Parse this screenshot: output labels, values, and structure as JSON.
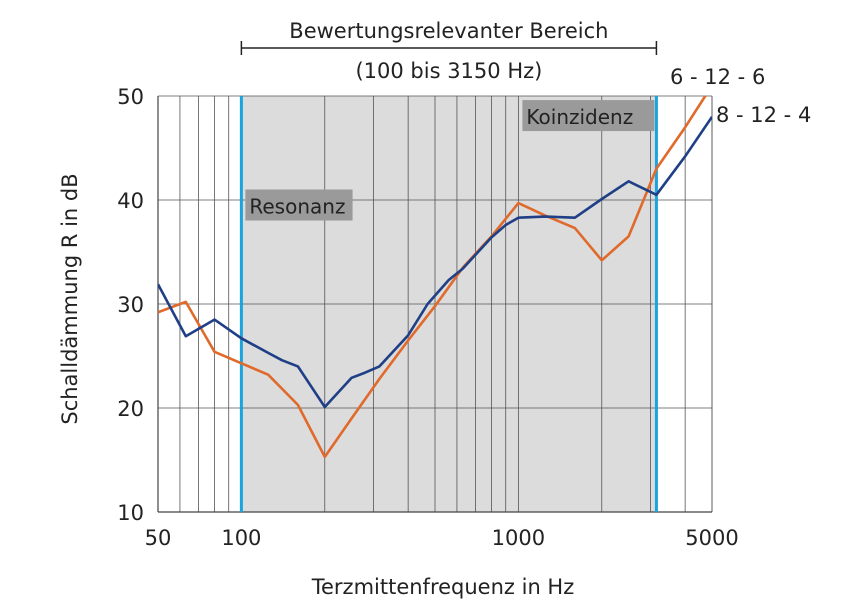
{
  "chart_data": {
    "type": "line",
    "title": "",
    "xlabel": "Terzmittenfrequenz in Hz",
    "ylabel": "Schalldämmung R in dB",
    "x_scale": "log",
    "xlim": [
      50,
      5000
    ],
    "ylim": [
      10,
      50
    ],
    "x_ticks": [
      {
        "value": 50,
        "label": "50"
      },
      {
        "value": 100,
        "label": "100"
      },
      {
        "value": 1000,
        "label": "1000"
      },
      {
        "value": 5000,
        "label": "5000"
      }
    ],
    "y_ticks": [
      {
        "value": 10,
        "label": "10"
      },
      {
        "value": 20,
        "label": "20"
      },
      {
        "value": 30,
        "label": "30"
      },
      {
        "value": 40,
        "label": "40"
      },
      {
        "value": 50,
        "label": "50"
      }
    ],
    "grid": true,
    "relevant_range": {
      "from": 100,
      "to": 3150,
      "label": "Bewertungsrelevanter Bereich",
      "sublabel": "(100 bis 3150 Hz)"
    },
    "annotations": [
      {
        "text": "Resonanz",
        "at": 100
      },
      {
        "text": "Koinzidenz",
        "at": 3150
      }
    ],
    "series": [
      {
        "name": "6 - 12 - 6",
        "color": "#e06a2c",
        "points": [
          [
            50,
            29.2
          ],
          [
            63,
            30.2
          ],
          [
            80,
            25.4
          ],
          [
            100,
            24.3
          ],
          [
            125,
            23.2
          ],
          [
            160,
            20.3
          ],
          [
            200,
            15.3
          ],
          [
            250,
            19.0
          ],
          [
            315,
            22.8
          ],
          [
            400,
            26.5
          ],
          [
            500,
            29.8
          ],
          [
            630,
            33.5
          ],
          [
            800,
            36.5
          ],
          [
            1000,
            39.7
          ],
          [
            1250,
            38.5
          ],
          [
            1600,
            37.3
          ],
          [
            2000,
            34.2
          ],
          [
            2500,
            36.5
          ],
          [
            3150,
            43.0
          ],
          [
            4000,
            47.0
          ],
          [
            5000,
            51.0
          ]
        ]
      },
      {
        "name": "8 - 12 - 4",
        "color": "#1f3f86",
        "points": [
          [
            50,
            31.9
          ],
          [
            63,
            26.9
          ],
          [
            80,
            28.5
          ],
          [
            100,
            26.7
          ],
          [
            125,
            25.3
          ],
          [
            140,
            24.6
          ],
          [
            160,
            24.0
          ],
          [
            200,
            20.1
          ],
          [
            250,
            22.9
          ],
          [
            280,
            23.4
          ],
          [
            315,
            24.0
          ],
          [
            400,
            27.0
          ],
          [
            470,
            30.0
          ],
          [
            560,
            32.3
          ],
          [
            630,
            33.4
          ],
          [
            800,
            36.4
          ],
          [
            900,
            37.6
          ],
          [
            1000,
            38.3
          ],
          [
            1250,
            38.4
          ],
          [
            1600,
            38.3
          ],
          [
            2000,
            40.1
          ],
          [
            2500,
            41.8
          ],
          [
            3150,
            40.5
          ],
          [
            4000,
            44.2
          ],
          [
            5000,
            48.0
          ]
        ]
      }
    ]
  }
}
